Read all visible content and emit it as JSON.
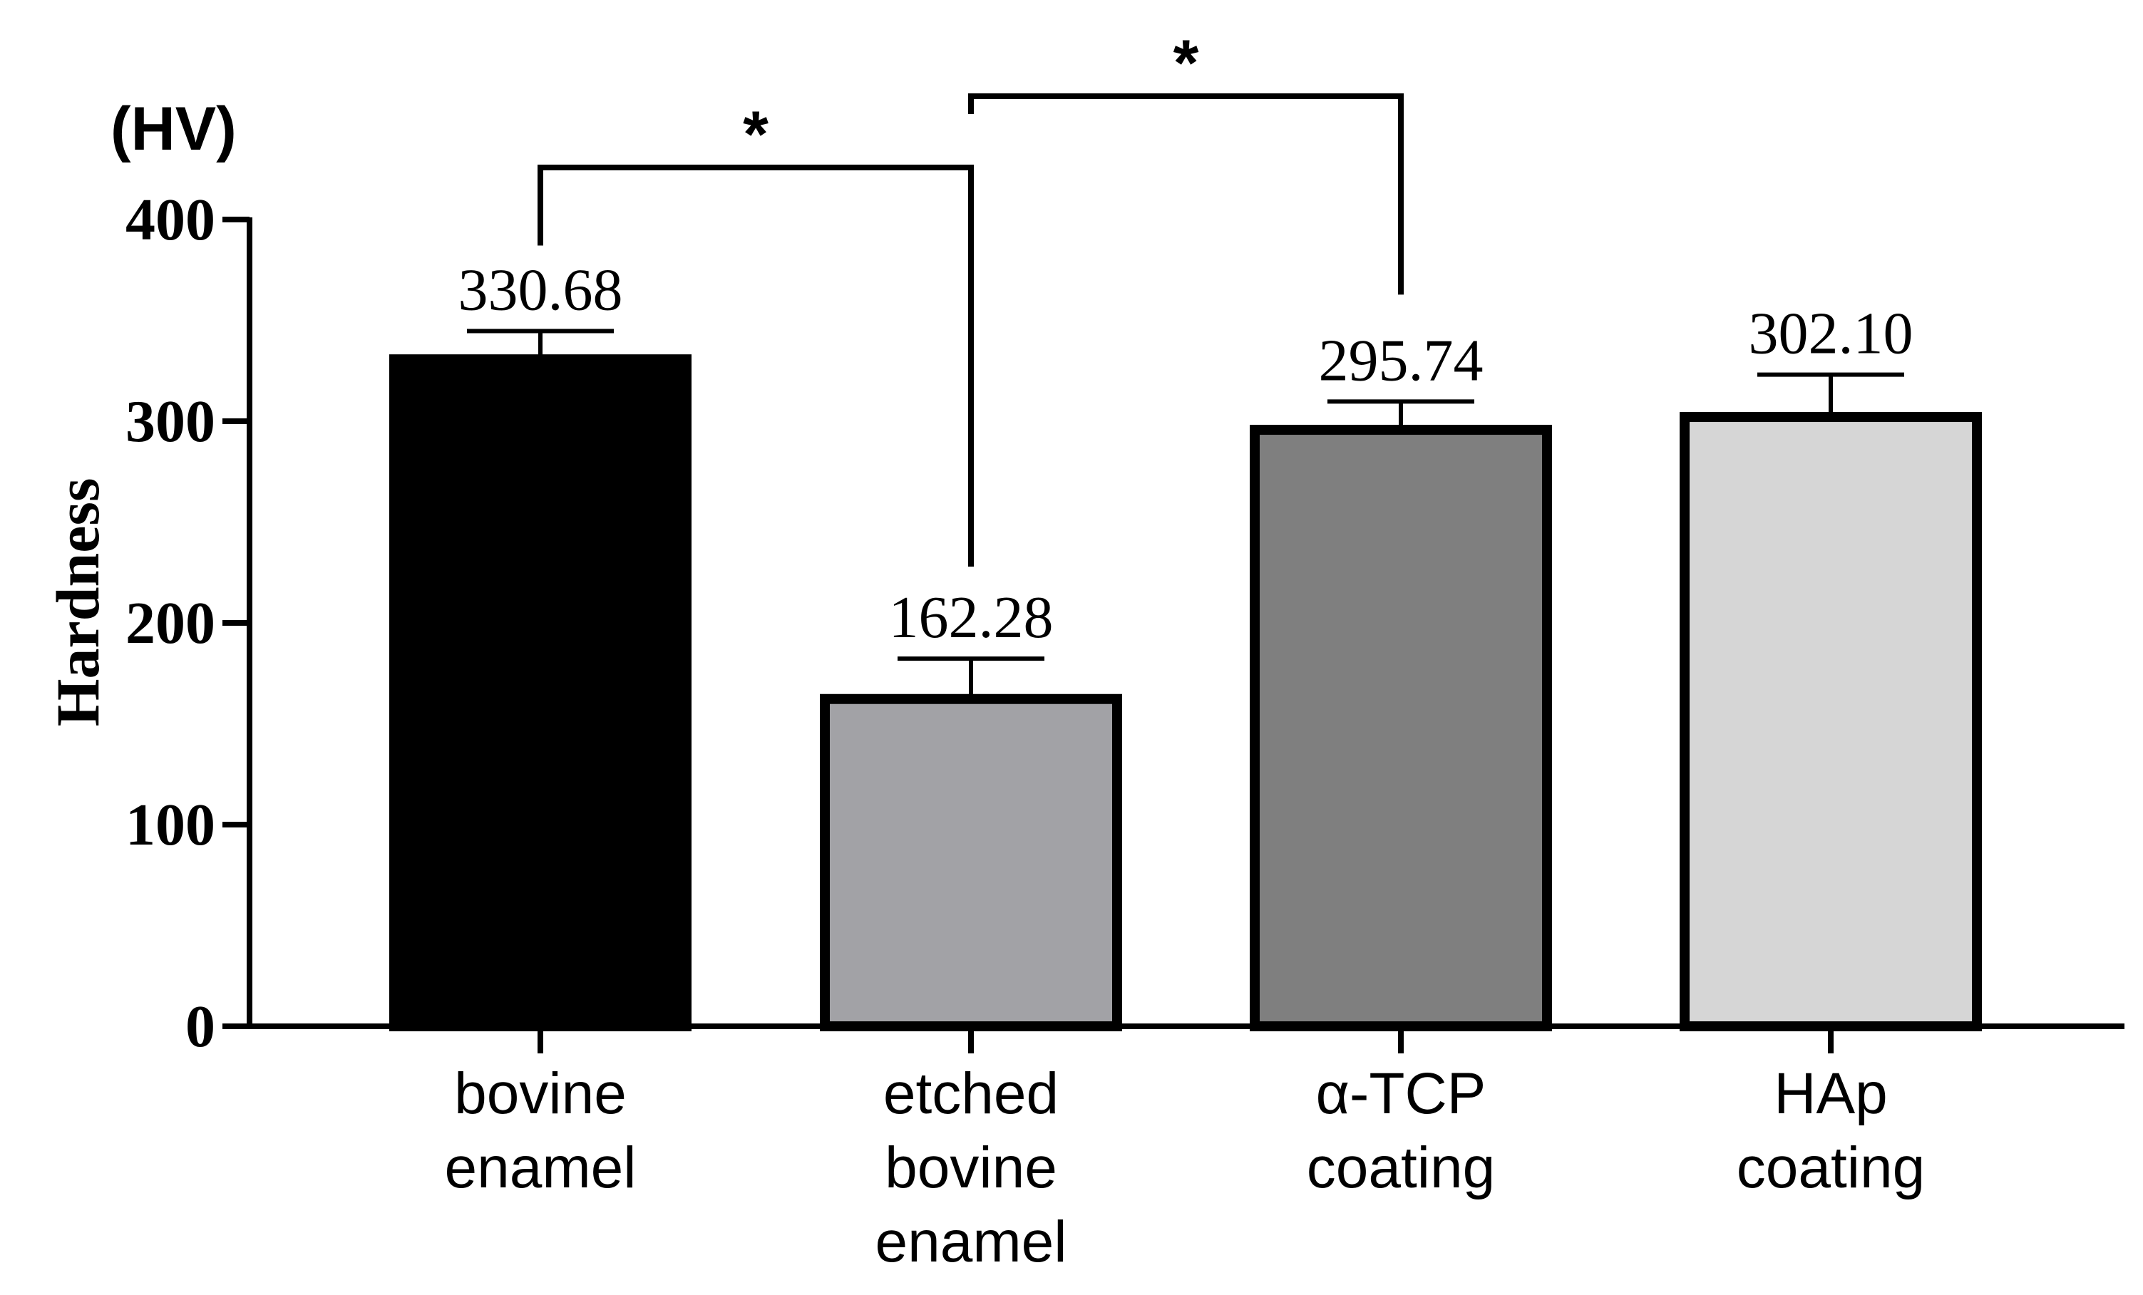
{
  "chart_data": {
    "type": "bar",
    "title": "",
    "xlabel": "",
    "ylabel": "Hardness",
    "unit_label": "(HV)",
    "ylim": [
      0,
      400
    ],
    "yticks": [
      0,
      100,
      200,
      300,
      400
    ],
    "grid": false,
    "legend": "none",
    "categories": [
      [
        "bovine",
        "enamel"
      ],
      [
        "etched",
        "bovine",
        "enamel"
      ],
      [
        "α-TCP",
        "coating"
      ],
      [
        "HAp",
        "coating"
      ]
    ],
    "values": [
      330.68,
      162.28,
      295.74,
      302.1
    ],
    "value_labels": [
      "330.68",
      "162.28",
      "295.74",
      "302.10"
    ],
    "error_bars": [
      14,
      20,
      14,
      21
    ],
    "bar_colors": [
      "#000000",
      "#a2a2a6",
      "#7f7f7f",
      "#d6d6d6"
    ],
    "significance": [
      {
        "from": 0,
        "to": 1,
        "label": "*"
      },
      {
        "from": 1,
        "to": 2,
        "label": "*"
      }
    ]
  }
}
